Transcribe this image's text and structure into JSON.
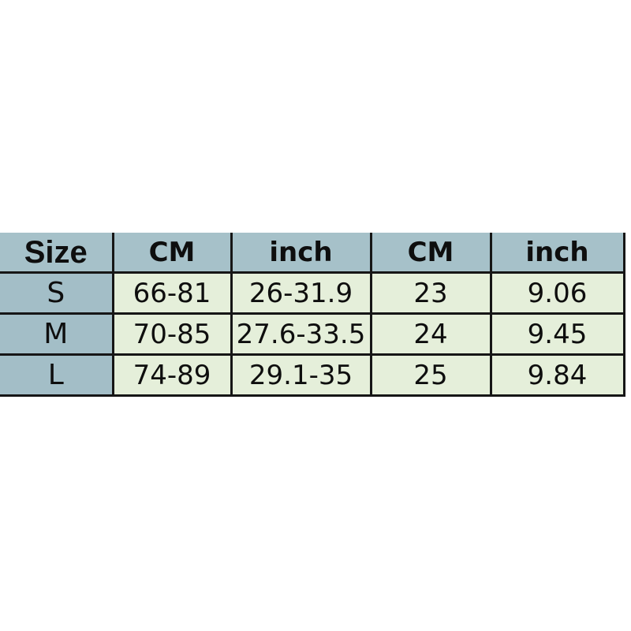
{
  "colors": {
    "page_bg": "#ffffff",
    "header_bg": "#a6c1c9",
    "size_col_bg": "#a3bec7",
    "cell_bg": "#e5efda",
    "border": "#161616",
    "text": "#0e0e0e"
  },
  "chart_data": {
    "type": "table",
    "title": "",
    "headers": [
      "Size",
      "CM",
      "inch",
      "CM",
      "inch"
    ],
    "rows": [
      [
        "S",
        "66-81",
        "26-31.9",
        "23",
        "9.06"
      ],
      [
        "M",
        "70-85",
        "27.6-33.5",
        "24",
        "9.45"
      ],
      [
        "L",
        "74-89",
        "29.1-35",
        "25",
        "9.84"
      ]
    ]
  }
}
